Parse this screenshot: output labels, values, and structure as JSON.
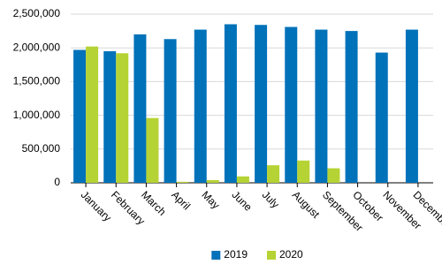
{
  "chart_data": {
    "type": "bar",
    "categories": [
      "January",
      "February",
      "March",
      "April",
      "May",
      "June",
      "July",
      "August",
      "September",
      "October",
      "November",
      "December"
    ],
    "series": [
      {
        "name": "2019",
        "color": "#0072b9",
        "values": [
          1970000,
          1950000,
          2200000,
          2130000,
          2270000,
          2350000,
          2340000,
          2310000,
          2270000,
          2250000,
          1930000,
          2270000
        ]
      },
      {
        "name": "2020",
        "color": "#b5d334",
        "values": [
          2020000,
          1920000,
          960000,
          15000,
          40000,
          95000,
          260000,
          330000,
          215000,
          null,
          null,
          null
        ]
      }
    ],
    "ylim": [
      0,
      2500000
    ],
    "yticks": [
      0,
      {
        "value": 500000,
        "label": "500,000"
      },
      {
        "value": 1000000,
        "label": "1,000,000"
      },
      {
        "value": 1500000,
        "label": "1,500,000"
      },
      {
        "value": 2000000,
        "label": "2,000,000"
      },
      {
        "value": 2500000,
        "label": "2,500,000"
      }
    ],
    "grid": true,
    "legend": "bottom"
  }
}
